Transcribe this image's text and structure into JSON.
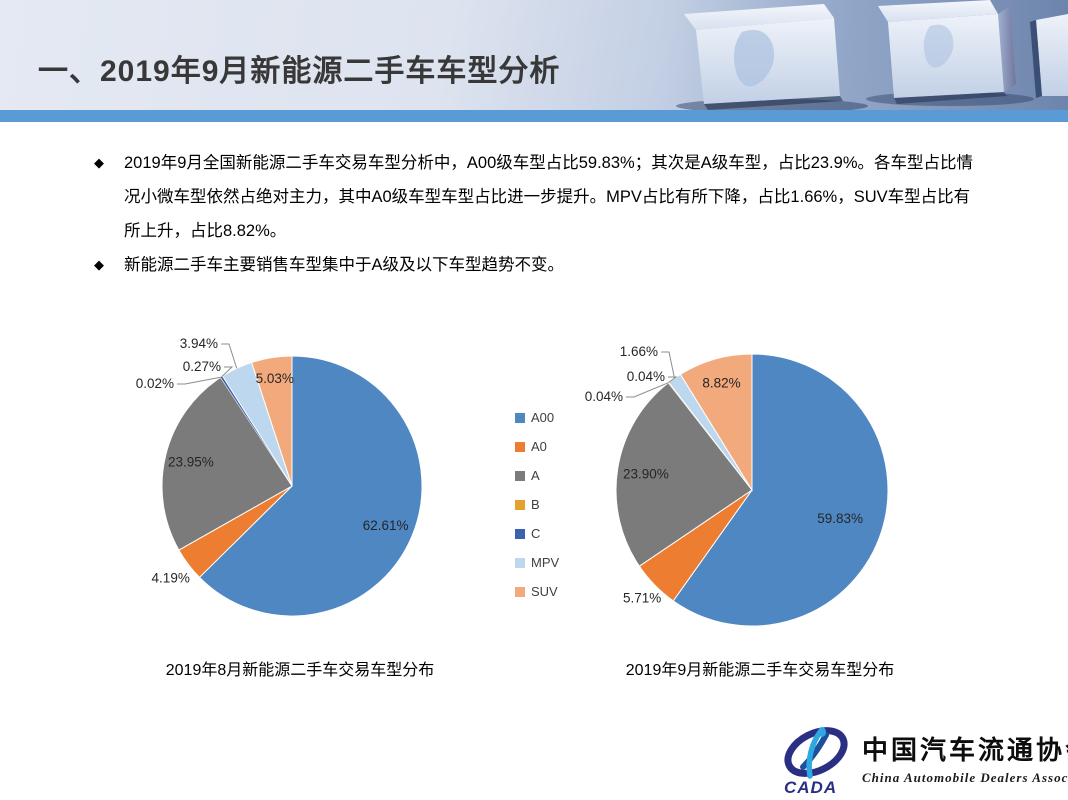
{
  "header": {
    "title": "一、2019年9月新能源二手车车型分析"
  },
  "bullets": [
    "2019年9月全国新能源二手车交易车型分析中，A00级车型占比59.83%；其次是A级车型，占比23.9%。各车型占比情况小微车型依然占绝对主力，其中A0级车型车型占比进一步提升。MPV占比有所下降，占比1.66%，SUV车型占比有所上升，占比8.82%。",
    "新能源二手车主要销售车型集中于A级及以下车型趋势不变。"
  ],
  "legend": {
    "position": "center-between-pies",
    "items": [
      {
        "label": "A00",
        "color": "#4E87C2"
      },
      {
        "label": "A0",
        "color": "#ED7D31"
      },
      {
        "label": "A",
        "color": "#7B7B7B"
      },
      {
        "label": "B",
        "color": "#E2A22B"
      },
      {
        "label": "C",
        "color": "#3A62AE"
      },
      {
        "label": "MPV",
        "color": "#BDD7EE"
      },
      {
        "label": "SUV",
        "color": "#F2A97C"
      }
    ]
  },
  "chart_data": [
    {
      "type": "pie",
      "title": "2019年8月新能源二手车交易车型分布",
      "start_angle_deg": 0,
      "direction": "clockwise",
      "slices": [
        {
          "name": "A00",
          "value": 62.61,
          "label": "62.61%",
          "placement": "inside"
        },
        {
          "name": "A0",
          "value": 4.19,
          "label": "4.19%",
          "placement": "outside"
        },
        {
          "name": "A",
          "value": 23.95,
          "label": "23.95%",
          "placement": "inside"
        },
        {
          "name": "B",
          "value": 0.02,
          "label": "0.02%",
          "placement": "callout"
        },
        {
          "name": "C",
          "value": 0.27,
          "label": "0.27%",
          "placement": "callout"
        },
        {
          "name": "MPV",
          "value": 3.94,
          "label": "3.94%",
          "placement": "callout"
        },
        {
          "name": "SUV",
          "value": 5.03,
          "label": "5.03%",
          "placement": "inside"
        }
      ]
    },
    {
      "type": "pie",
      "title": "2019年9月新能源二手车交易车型分布",
      "start_angle_deg": 0,
      "direction": "clockwise",
      "slices": [
        {
          "name": "A00",
          "value": 59.83,
          "label": "59.83%",
          "placement": "inside"
        },
        {
          "name": "A0",
          "value": 5.71,
          "label": "5.71%",
          "placement": "outside"
        },
        {
          "name": "A",
          "value": 23.9,
          "label": "23.90%",
          "placement": "inside"
        },
        {
          "name": "B",
          "value": 0.04,
          "label": "0.04%",
          "placement": "callout"
        },
        {
          "name": "C",
          "value": 0.04,
          "label": "0.04%",
          "placement": "callout"
        },
        {
          "name": "MPV",
          "value": 1.66,
          "label": "1.66%",
          "placement": "callout"
        },
        {
          "name": "SUV",
          "value": 8.82,
          "label": "8.82%",
          "placement": "inside"
        }
      ]
    }
  ],
  "footer_logo": {
    "acronym": "CADA",
    "name_cn": "中国汽车流通协会",
    "name_en": "China Automobile Dealers Association"
  },
  "theme": {
    "divider_blue": "#5B9BD5",
    "bullet_marker": "◆"
  }
}
